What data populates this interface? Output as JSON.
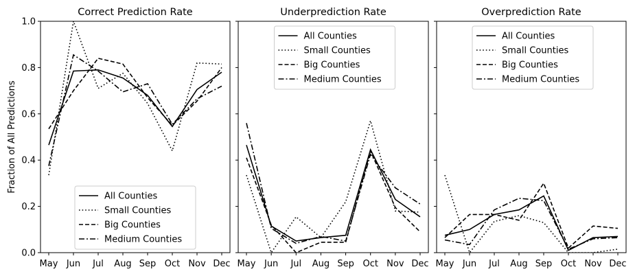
{
  "chart_data": [
    {
      "type": "line",
      "title": "Correct Prediction Rate",
      "xlabel": "",
      "ylabel": "Fraction of All Predictions",
      "ylim": [
        0,
        1.0
      ],
      "y_ticks": [
        "0.0",
        "0.2",
        "0.4",
        "0.6",
        "0.8",
        "1.0"
      ],
      "categories": [
        "May",
        "Jun",
        "Jul",
        "Aug",
        "Sep",
        "Oct",
        "Nov",
        "Dec"
      ],
      "legend_position": "lower-center",
      "series": [
        {
          "name": "All Counties",
          "style": "solid",
          "values": [
            0.465,
            0.785,
            0.79,
            0.755,
            0.68,
            0.545,
            0.705,
            0.78
          ]
        },
        {
          "name": "Small Counties",
          "style": "dotted",
          "values": [
            0.335,
            1.0,
            0.71,
            0.775,
            0.645,
            0.44,
            0.82,
            0.815
          ]
        },
        {
          "name": "Big Counties",
          "style": "dashed",
          "values": [
            0.535,
            0.7,
            0.84,
            0.815,
            0.67,
            0.55,
            0.655,
            0.8
          ]
        },
        {
          "name": "Medium Counties",
          "style": "dashdot",
          "values": [
            0.375,
            0.855,
            0.785,
            0.695,
            0.73,
            0.555,
            0.665,
            0.72
          ]
        }
      ]
    },
    {
      "type": "line",
      "title": "Underprediction Rate",
      "ylim": [
        0,
        1.0
      ],
      "categories": [
        "May",
        "Jun",
        "Jul",
        "Aug",
        "Sep",
        "Oct",
        "Nov",
        "Dec"
      ],
      "legend_position": "upper-center",
      "series": [
        {
          "name": "All Counties",
          "style": "solid",
          "values": [
            0.465,
            0.115,
            0.05,
            0.065,
            0.075,
            0.445,
            0.23,
            0.155
          ]
        },
        {
          "name": "Small Counties",
          "style": "dotted",
          "values": [
            0.335,
            0.0,
            0.155,
            0.065,
            0.22,
            0.57,
            0.18,
            0.175
          ]
        },
        {
          "name": "Big Counties",
          "style": "dashed",
          "values": [
            0.41,
            0.12,
            0.0,
            0.045,
            0.045,
            0.44,
            0.195,
            0.09
          ]
        },
        {
          "name": "Medium Counties",
          "style": "dashdot",
          "values": [
            0.56,
            0.105,
            0.04,
            0.07,
            0.05,
            0.425,
            0.28,
            0.21
          ]
        }
      ]
    },
    {
      "type": "line",
      "title": "Overprediction Rate",
      "ylim": [
        0,
        1.0
      ],
      "categories": [
        "May",
        "Jun",
        "Jul",
        "Aug",
        "Sep",
        "Oct",
        "Nov",
        "Dec"
      ],
      "legend_position": "upper-center",
      "series": [
        {
          "name": "All Counties",
          "style": "solid",
          "values": [
            0.075,
            0.1,
            0.165,
            0.185,
            0.245,
            0.01,
            0.065,
            0.07
          ]
        },
        {
          "name": "Small Counties",
          "style": "dotted",
          "values": [
            0.335,
            0.0,
            0.135,
            0.16,
            0.13,
            0.0,
            0.0,
            0.015
          ]
        },
        {
          "name": "Big Counties",
          "style": "dashed",
          "values": [
            0.065,
            0.165,
            0.165,
            0.14,
            0.3,
            0.02,
            0.115,
            0.105
          ]
        },
        {
          "name": "Medium Counties",
          "style": "dashdot",
          "values": [
            0.055,
            0.035,
            0.185,
            0.235,
            0.225,
            0.015,
            0.06,
            0.065
          ]
        }
      ]
    }
  ]
}
